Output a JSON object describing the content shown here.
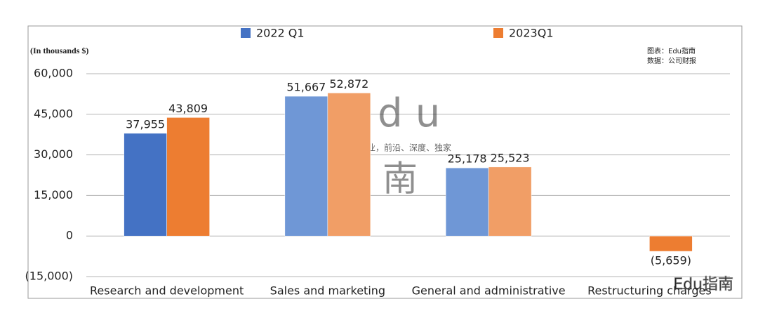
{
  "chart_data": {
    "type": "bar",
    "y_axis_label": "(In thousands $)",
    "categories": [
      "Research and development",
      "Sales and marketing",
      "General and administrative",
      "Restructuring charges"
    ],
    "series": [
      {
        "name": "2022 Q1",
        "color": "#4472c4",
        "colors": [
          "#4472c4",
          "#6f97d6",
          "#6f97d6",
          "#6f97d6"
        ],
        "values": [
          37955,
          51667,
          25178,
          null
        ],
        "value_labels": [
          "37,955",
          "51,667",
          "25,178",
          null
        ]
      },
      {
        "name": "2023Q1",
        "color": "#ed7d31",
        "colors": [
          "#ed7d31",
          "#f19e66",
          "#f19e66",
          "#ed7d31"
        ],
        "values": [
          43809,
          52872,
          25523,
          -5659
        ],
        "value_labels": [
          "43,809",
          "52,872",
          "25,523",
          "(5,659)"
        ]
      }
    ],
    "ylim": [
      -15000,
      60000
    ],
    "yticks": [
      {
        "value": -15000,
        "label": "(15,000)"
      },
      0,
      {
        "value": 15000,
        "label": "15,000"
      },
      {
        "value": 30000,
        "label": "30,000"
      },
      {
        "value": 45000,
        "label": "45,000"
      },
      {
        "value": 60000,
        "label": "60,000"
      }
    ],
    "grid": true,
    "legend": "top",
    "source_notes": [
      "图表：Edu指南",
      "数据：公司财报"
    ],
    "watermarks": [
      "Edu",
      "教育行业，前沿、深度、独家",
      "指南",
      "Edu指南"
    ]
  }
}
